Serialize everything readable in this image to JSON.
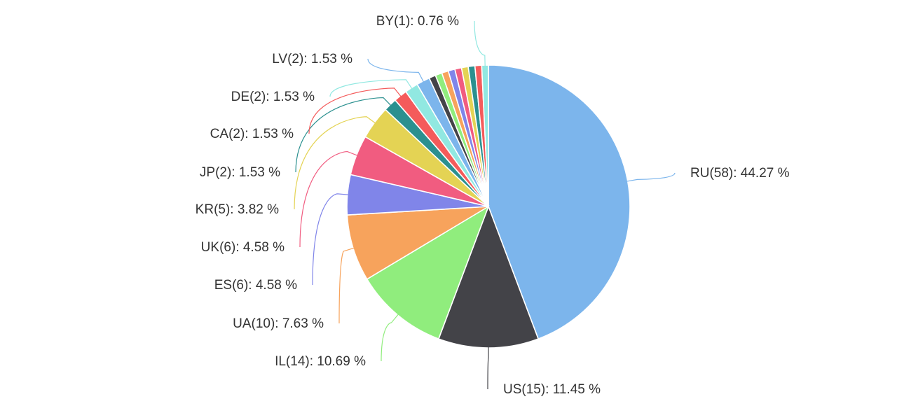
{
  "chart_data": {
    "type": "pie",
    "title": "",
    "start_angle_deg": 0,
    "direction": "clockwise",
    "slices": [
      {
        "code": "RU",
        "count": 58,
        "percent": 44.27,
        "label": "RU(58): 44.27 %",
        "color": "#7cb5ec"
      },
      {
        "code": "US",
        "count": 15,
        "percent": 11.45,
        "label": "US(15): 11.45 %",
        "color": "#434348"
      },
      {
        "code": "IL",
        "count": 14,
        "percent": 10.69,
        "label": "IL(14): 10.69 %",
        "color": "#90ed7d"
      },
      {
        "code": "UA",
        "count": 10,
        "percent": 7.63,
        "label": "UA(10): 7.63 %",
        "color": "#f7a35c"
      },
      {
        "code": "ES",
        "count": 6,
        "percent": 4.58,
        "label": "ES(6): 4.58 %",
        "color": "#8085e9"
      },
      {
        "code": "UK",
        "count": 6,
        "percent": 4.58,
        "label": "UK(6): 4.58 %",
        "color": "#f15c80"
      },
      {
        "code": "KR",
        "count": 5,
        "percent": 3.82,
        "label": "KR(5): 3.82 %",
        "color": "#e4d354"
      },
      {
        "code": "JP",
        "count": 2,
        "percent": 1.53,
        "label": "JP(2): 1.53 %",
        "color": "#2b908f"
      },
      {
        "code": "CA",
        "count": 2,
        "percent": 1.53,
        "label": "CA(2): 1.53 %",
        "color": "#f45b5b"
      },
      {
        "code": "DE",
        "count": 2,
        "percent": 1.53,
        "label": "DE(2): 1.53 %",
        "color": "#91e8e1"
      },
      {
        "code": "LV",
        "count": 2,
        "percent": 1.53,
        "label": "LV(2): 1.53 %",
        "color": "#7cb5ec"
      },
      {
        "code": "",
        "count": 1,
        "percent": 0.76,
        "label": "",
        "color": "#434348"
      },
      {
        "code": "",
        "count": 1,
        "percent": 0.76,
        "label": "",
        "color": "#90ed7d"
      },
      {
        "code": "",
        "count": 1,
        "percent": 0.76,
        "label": "",
        "color": "#f7a35c"
      },
      {
        "code": "",
        "count": 1,
        "percent": 0.76,
        "label": "",
        "color": "#8085e9"
      },
      {
        "code": "",
        "count": 1,
        "percent": 0.76,
        "label": "",
        "color": "#f15c80"
      },
      {
        "code": "",
        "count": 1,
        "percent": 0.76,
        "label": "",
        "color": "#e4d354"
      },
      {
        "code": "",
        "count": 1,
        "percent": 0.76,
        "label": "",
        "color": "#2b908f"
      },
      {
        "code": "",
        "count": 1,
        "percent": 0.76,
        "label": "",
        "color": "#f45b5b"
      },
      {
        "code": "BY",
        "count": 1,
        "percent": 0.76,
        "label": "BY(1): 0.76 %",
        "color": "#91e8e1"
      }
    ]
  }
}
